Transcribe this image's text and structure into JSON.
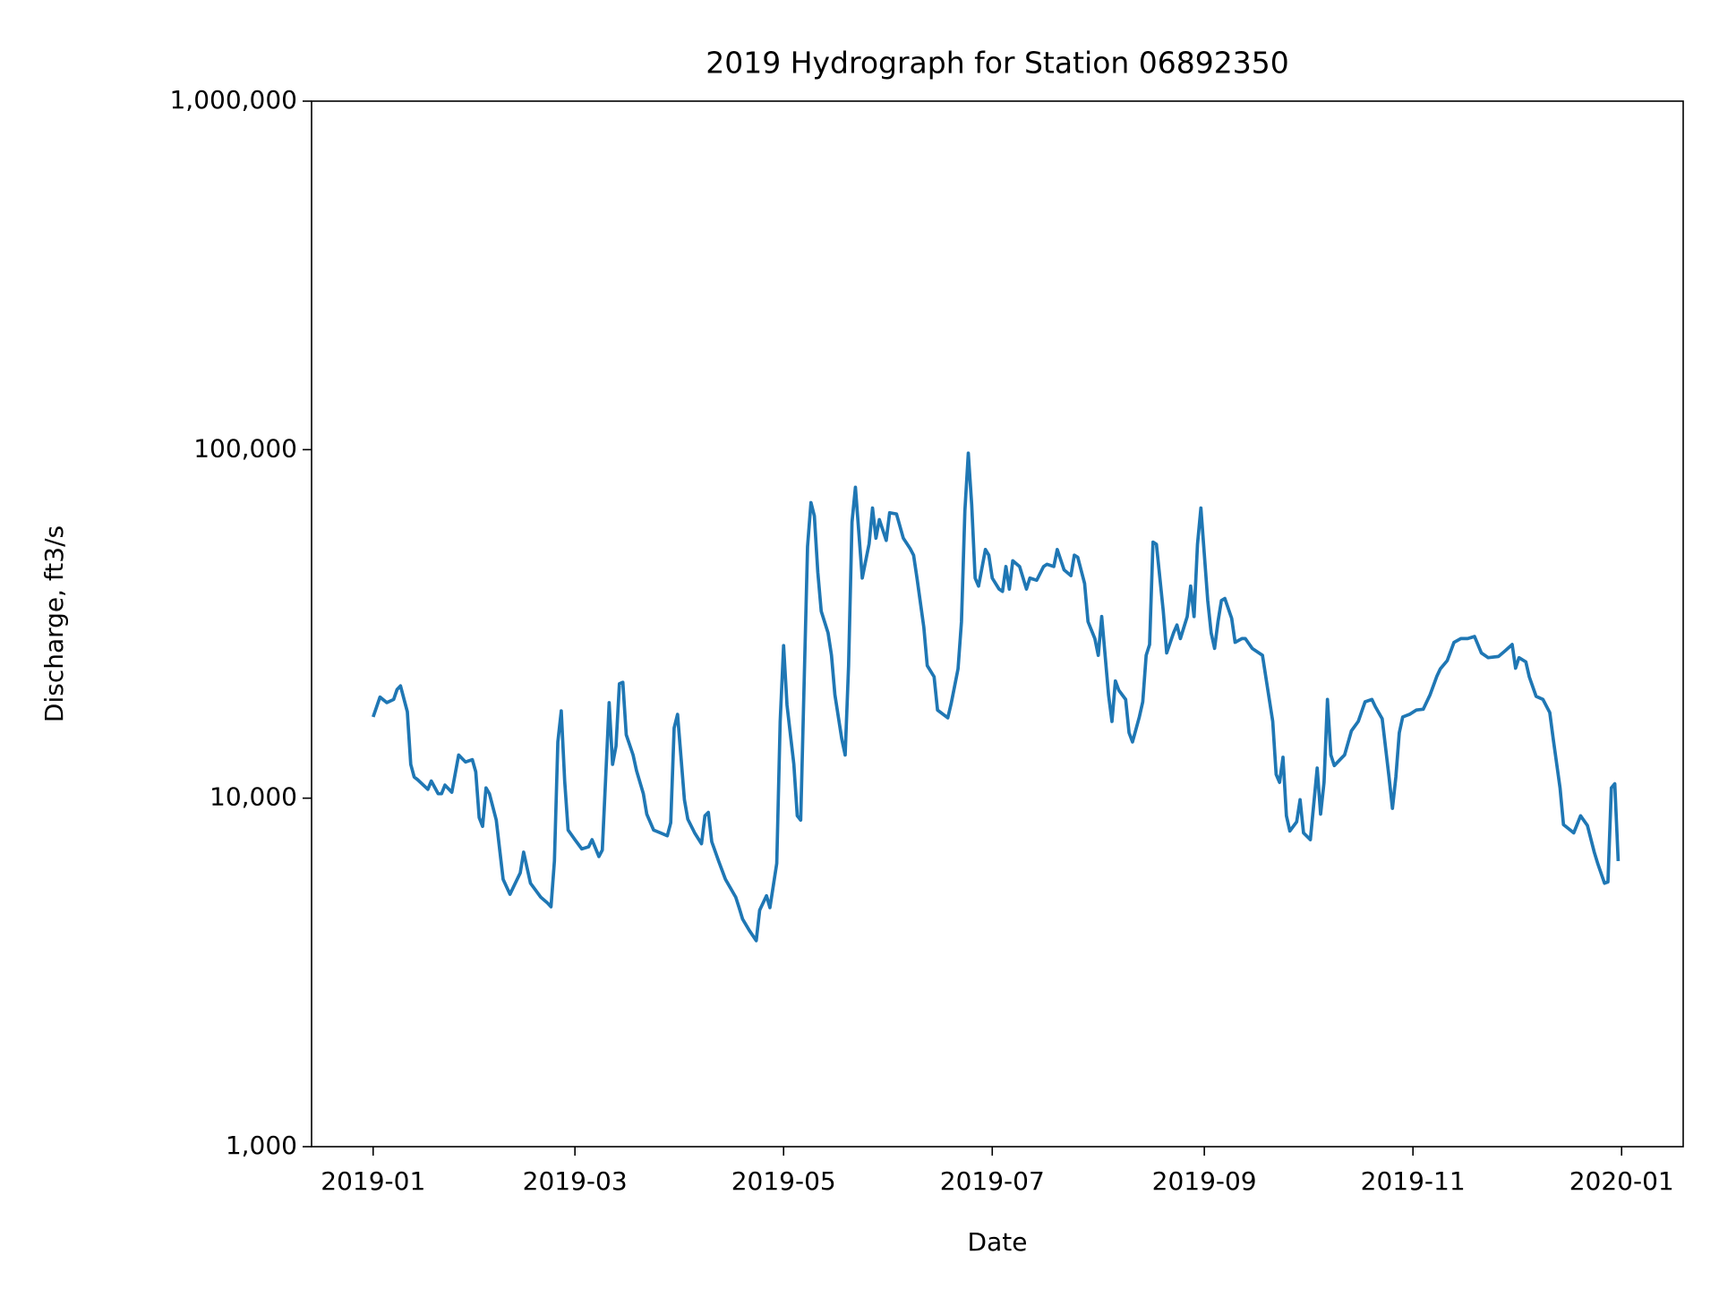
{
  "chart_data": {
    "type": "line",
    "title": "2019 Hydrograph for Station 06892350",
    "x_label": "Date",
    "y_label": "Discharge, ft3/s",
    "color": "#1f77b4",
    "y_log": true,
    "xlim": [
      "2018-12-14",
      "2020-01-19"
    ],
    "ylim": [
      1000,
      1000000
    ],
    "xticks": [
      {
        "value": "2019-01-01",
        "label": "2019-01"
      },
      {
        "value": "2019-03-01",
        "label": "2019-03"
      },
      {
        "value": "2019-05-01",
        "label": "2019-05"
      },
      {
        "value": "2019-07-01",
        "label": "2019-07"
      },
      {
        "value": "2019-09-01",
        "label": "2019-09"
      },
      {
        "value": "2019-11-01",
        "label": "2019-11"
      },
      {
        "value": "2020-01-01",
        "label": "2020-01"
      }
    ],
    "yticks": [
      {
        "value": 1000,
        "label": "1,000"
      },
      {
        "value": 10000,
        "label": "10,000"
      },
      {
        "value": 100000,
        "label": "100,000"
      },
      {
        "value": 1000000,
        "label": "1,000,000"
      }
    ],
    "x": [
      "2019-01-01",
      "2019-01-03",
      "2019-01-05",
      "2019-01-07",
      "2019-01-08",
      "2019-01-09",
      "2019-01-11",
      "2019-01-12",
      "2019-01-13",
      "2019-01-14",
      "2019-01-17",
      "2019-01-18",
      "2019-01-20",
      "2019-01-21",
      "2019-01-22",
      "2019-01-24",
      "2019-01-26",
      "2019-01-28",
      "2019-01-30",
      "2019-01-31",
      "2019-02-01",
      "2019-02-02",
      "2019-02-03",
      "2019-02-04",
      "2019-02-06",
      "2019-02-08",
      "2019-02-10",
      "2019-02-13",
      "2019-02-14",
      "2019-02-16",
      "2019-02-19",
      "2019-02-21",
      "2019-02-22",
      "2019-02-23",
      "2019-02-24",
      "2019-02-25",
      "2019-02-26",
      "2019-02-27",
      "2019-03-01",
      "2019-03-03",
      "2019-03-05",
      "2019-03-06",
      "2019-03-08",
      "2019-03-09",
      "2019-03-11",
      "2019-03-12",
      "2019-03-13",
      "2019-03-14",
      "2019-03-15",
      "2019-03-16",
      "2019-03-18",
      "2019-03-19",
      "2019-03-21",
      "2019-03-22",
      "2019-03-24",
      "2019-03-26",
      "2019-03-28",
      "2019-03-29",
      "2019-03-30",
      "2019-03-31",
      "2019-04-02",
      "2019-04-03",
      "2019-04-05",
      "2019-04-07",
      "2019-04-08",
      "2019-04-09",
      "2019-04-10",
      "2019-04-12",
      "2019-04-14",
      "2019-04-17",
      "2019-04-18",
      "2019-04-19",
      "2019-04-21",
      "2019-04-23",
      "2019-04-24",
      "2019-04-26",
      "2019-04-27",
      "2019-04-29",
      "2019-04-30",
      "2019-05-01",
      "2019-05-02",
      "2019-05-04",
      "2019-05-05",
      "2019-05-06",
      "2019-05-08",
      "2019-05-09",
      "2019-05-10",
      "2019-05-11",
      "2019-05-12",
      "2019-05-14",
      "2019-05-15",
      "2019-05-16",
      "2019-05-18",
      "2019-05-19",
      "2019-05-20",
      "2019-05-21",
      "2019-05-22",
      "2019-05-24",
      "2019-05-26",
      "2019-05-27",
      "2019-05-28",
      "2019-05-29",
      "2019-05-31",
      "2019-06-01",
      "2019-06-03",
      "2019-06-05",
      "2019-06-07",
      "2019-06-08",
      "2019-06-09",
      "2019-06-11",
      "2019-06-12",
      "2019-06-14",
      "2019-06-15",
      "2019-06-18",
      "2019-06-19",
      "2019-06-21",
      "2019-06-22",
      "2019-06-23",
      "2019-06-24",
      "2019-06-25",
      "2019-06-26",
      "2019-06-27",
      "2019-06-29",
      "2019-06-30",
      "2019-07-01",
      "2019-07-03",
      "2019-07-04",
      "2019-07-05",
      "2019-07-06",
      "2019-07-07",
      "2019-07-09",
      "2019-07-11",
      "2019-07-12",
      "2019-07-14",
      "2019-07-16",
      "2019-07-17",
      "2019-07-19",
      "2019-07-20",
      "2019-07-22",
      "2019-07-24",
      "2019-07-25",
      "2019-07-26",
      "2019-07-28",
      "2019-07-29",
      "2019-07-31",
      "2019-08-01",
      "2019-08-02",
      "2019-08-03",
      "2019-08-04",
      "2019-08-05",
      "2019-08-06",
      "2019-08-07",
      "2019-08-09",
      "2019-08-10",
      "2019-08-11",
      "2019-08-13",
      "2019-08-14",
      "2019-08-15",
      "2019-08-16",
      "2019-08-17",
      "2019-08-18",
      "2019-08-20",
      "2019-08-21",
      "2019-08-23",
      "2019-08-24",
      "2019-08-25",
      "2019-08-27",
      "2019-08-28",
      "2019-08-29",
      "2019-08-30",
      "2019-08-31",
      "2019-09-02",
      "2019-09-03",
      "2019-09-04",
      "2019-09-05",
      "2019-09-06",
      "2019-09-07",
      "2019-09-09",
      "2019-09-10",
      "2019-09-12",
      "2019-09-13",
      "2019-09-15",
      "2019-09-18",
      "2019-09-20",
      "2019-09-21",
      "2019-09-22",
      "2019-09-23",
      "2019-09-24",
      "2019-09-25",
      "2019-09-26",
      "2019-09-28",
      "2019-09-29",
      "2019-09-30",
      "2019-10-02",
      "2019-10-04",
      "2019-10-05",
      "2019-10-06",
      "2019-10-07",
      "2019-10-08",
      "2019-10-09",
      "2019-10-11",
      "2019-10-12",
      "2019-10-14",
      "2019-10-16",
      "2019-10-18",
      "2019-10-20",
      "2019-10-21",
      "2019-10-23",
      "2019-10-25",
      "2019-10-26",
      "2019-10-27",
      "2019-10-28",
      "2019-10-29",
      "2019-10-31",
      "2019-11-02",
      "2019-11-04",
      "2019-11-06",
      "2019-11-08",
      "2019-11-09",
      "2019-11-11",
      "2019-11-13",
      "2019-11-15",
      "2019-11-17",
      "2019-11-19",
      "2019-11-21",
      "2019-11-23",
      "2019-11-26",
      "2019-11-28",
      "2019-11-30",
      "2019-12-01",
      "2019-12-02",
      "2019-12-04",
      "2019-12-05",
      "2019-12-07",
      "2019-12-09",
      "2019-12-11",
      "2019-12-12",
      "2019-12-14",
      "2019-12-15",
      "2019-12-18",
      "2019-12-20",
      "2019-12-22",
      "2019-12-24",
      "2019-12-25",
      "2019-12-27",
      "2019-12-28",
      "2019-12-29",
      "2019-12-30",
      "2019-12-31"
    ],
    "values": [
      17100,
      19500,
      18800,
      19200,
      20500,
      21000,
      17700,
      12500,
      11500,
      11300,
      10600,
      11200,
      10300,
      10300,
      10900,
      10400,
      13300,
      12700,
      12900,
      11900,
      8800,
      8300,
      10700,
      10300,
      8650,
      5850,
      5300,
      6100,
      7000,
      5700,
      5200,
      5000,
      4880,
      6600,
      14500,
      17800,
      11200,
      8100,
      7600,
      7150,
      7250,
      7600,
      6800,
      7100,
      18800,
      12500,
      14100,
      21300,
      21500,
      15200,
      13300,
      12000,
      10300,
      9000,
      8100,
      7950,
      7800,
      8500,
      15900,
      17400,
      9900,
      8700,
      7950,
      7400,
      8900,
      9100,
      7500,
      6600,
      5850,
      5200,
      4850,
      4500,
      4170,
      3900,
      4770,
      5250,
      4850,
      6500,
      16600,
      27400,
      18500,
      12500,
      8900,
      8650,
      52700,
      70500,
      64500,
      44500,
      34400,
      29800,
      25700,
      19800,
      14800,
      13300,
      24000,
      62000,
      78000,
      42800,
      53700,
      68000,
      55700,
      63000,
      54900,
      65900,
      65400,
      55700,
      52000,
      49800,
      42800,
      30900,
      24000,
      22300,
      17900,
      17000,
      18700,
      23500,
      32100,
      66800,
      97700,
      69300,
      42800,
      40600,
      51700,
      49800,
      42800,
      39800,
      39200,
      46200,
      39800,
      48000,
      46200,
      39800,
      42800,
      42200,
      46200,
      46900,
      46200,
      51700,
      45200,
      43500,
      49800,
      49100,
      41300,
      32100,
      28700,
      25700,
      33200,
      25700,
      19800,
      16600,
      21700,
      20400,
      19200,
      15400,
      14500,
      17100,
      18900,
      25700,
      27600,
      54300,
      53500,
      34400,
      26100,
      29800,
      31400,
      28700,
      33200,
      40600,
      33200,
      53500,
      68000,
      36900,
      29800,
      26900,
      32100,
      36900,
      37400,
      32800,
      28000,
      28700,
      28700,
      26900,
      25700,
      19200,
      16600,
      11700,
      11100,
      13100,
      8900,
      8050,
      8550,
      9900,
      7950,
      7600,
      12200,
      9000,
      11100,
      19200,
      13300,
      12400,
      13000,
      13300,
      15600,
      16600,
      18900,
      19200,
      18300,
      16900,
      11500,
      9350,
      11500,
      15400,
      17100,
      17400,
      17900,
      18000,
      19800,
      22400,
      23500,
      24800,
      28000,
      28700,
      28700,
      29100,
      26100,
      25300,
      25500,
      26500,
      27600,
      23600,
      25300,
      24600,
      22300,
      19600,
      19200,
      17600,
      14800,
      10700,
      8400,
      7950,
      8900,
      8350,
      7000,
      6500,
      5700,
      5750,
      10700,
      11000,
      6600
    ]
  }
}
